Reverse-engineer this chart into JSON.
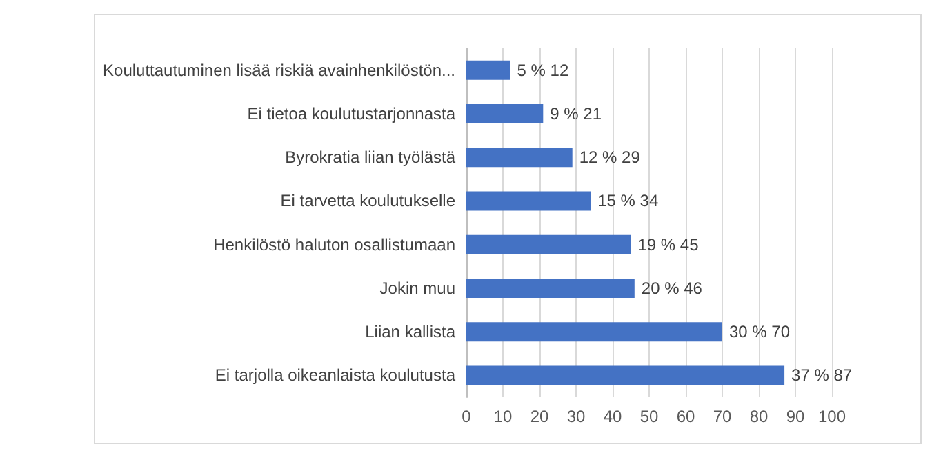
{
  "chart_data": {
    "type": "bar",
    "orientation": "horizontal",
    "categories": [
      "Kouluttautuminen lisää riskiä avainhenkilöstön...",
      "Ei tietoa koulutustarjonnasta",
      "Byrokratia liian työlästä",
      "Ei tarvetta koulutukselle",
      "Henkilöstö haluton osallistumaan",
      "Jokin muu",
      "Liian kallista",
      "Ei tarjolla oikeanlaista koulutusta"
    ],
    "values": [
      12,
      21,
      29,
      34,
      45,
      46,
      70,
      87
    ],
    "value_labels": [
      "5 % 12",
      "9 % 21",
      "12 % 29",
      "15 % 34",
      "19 % 45",
      "20 % 46",
      "30 % 70",
      "37 % 87"
    ],
    "color": "#4472c4",
    "xlim": [
      0,
      100
    ],
    "xticks": [
      0,
      10,
      20,
      30,
      40,
      50,
      60,
      70,
      80,
      90,
      100
    ],
    "grid": "x"
  }
}
